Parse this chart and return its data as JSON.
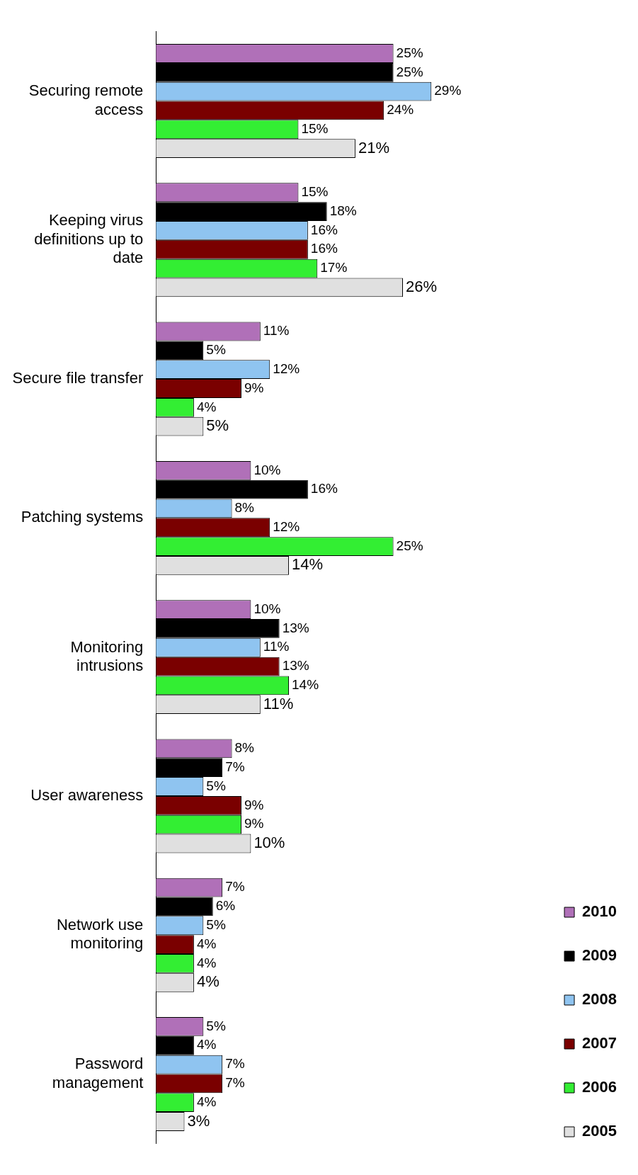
{
  "chart_data": {
    "type": "bar",
    "orientation": "horizontal",
    "categories": [
      "Securing remote access",
      "Keeping virus definitions up to date",
      "Secure file transfer",
      "Patching systems",
      "Monitoring intrusions",
      "User awareness",
      "Network use monitoring",
      "Password management"
    ],
    "series": [
      {
        "name": "2010",
        "color": "#b070b8",
        "values": [
          25,
          15,
          11,
          10,
          10,
          8,
          7,
          5
        ],
        "value_labels": [
          "25%",
          "15%",
          "11%",
          "10%",
          "10%",
          "8%",
          "7%",
          "5%"
        ]
      },
      {
        "name": "2009",
        "color": "#000000",
        "values": [
          25,
          18,
          5,
          16,
          13,
          7,
          6,
          4
        ],
        "value_labels": [
          "25%",
          "18%",
          "5%",
          "16%",
          "13%",
          "7%",
          "6%",
          "4%"
        ]
      },
      {
        "name": "2008",
        "color": "#8fc4f0",
        "values": [
          29,
          16,
          12,
          8,
          11,
          5,
          5,
          7
        ],
        "value_labels": [
          "29%",
          "16%",
          "12%",
          "8%",
          "11%",
          "5%",
          "5%",
          "7%"
        ]
      },
      {
        "name": "2007",
        "color": "#7a0000",
        "values": [
          24,
          16,
          9,
          12,
          13,
          9,
          4,
          7
        ],
        "value_labels": [
          "24%",
          "16%",
          "9%",
          "12%",
          "13%",
          "9%",
          "4%",
          "7%"
        ]
      },
      {
        "name": "2006",
        "color": "#33ee33",
        "values": [
          15,
          17,
          4,
          25,
          14,
          9,
          4,
          4
        ],
        "value_labels": [
          "15%",
          "17%",
          "4%",
          "25%",
          "14%",
          "9%",
          "4%",
          "4%"
        ]
      },
      {
        "name": "2005",
        "color": "#e0e0e0",
        "values": [
          21,
          26,
          5,
          14,
          11,
          10,
          4,
          3
        ],
        "value_labels": [
          "21%",
          "26%",
          "5%",
          "14%",
          "11%",
          "10%",
          "4%",
          "3%"
        ]
      }
    ],
    "grid": false,
    "legend": "right"
  }
}
